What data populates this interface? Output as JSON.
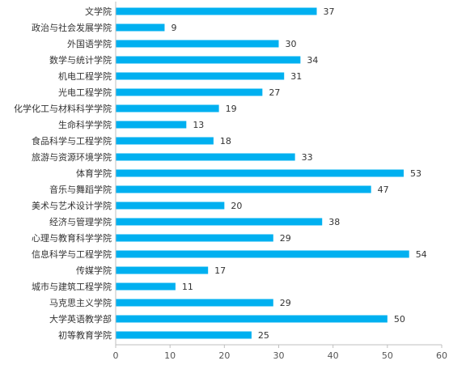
{
  "chart_data": {
    "type": "bar",
    "orientation": "horizontal",
    "categories": [
      "文学院",
      "政治与社会发展学院",
      "外国语学院",
      "数学与统计学院",
      "机电工程学院",
      "光电工程学院",
      "化学化工与材料科学学院",
      "生命科学学院",
      "食品科学与工程学院",
      "旅游与资源环境学院",
      "体育学院",
      "音乐与舞蹈学院",
      "美术与艺术设计学院",
      "经济与管理学院",
      "心理与教育科学学院",
      "信息科学与工程学院",
      "传媒学院",
      "城市与建筑工程学院",
      "马克思主义学院",
      "大学英语教学部",
      "初等教育学院"
    ],
    "values": [
      37,
      9,
      30,
      34,
      31,
      27,
      19,
      13,
      18,
      33,
      53,
      47,
      20,
      38,
      29,
      54,
      17,
      11,
      29,
      50,
      25
    ],
    "xlim": [
      0,
      60
    ],
    "xticks": [
      0,
      10,
      20,
      30,
      40,
      50,
      60
    ],
    "bar_color": "#00b0f0",
    "grid": false,
    "data_labels": true,
    "legend": "none",
    "title": "",
    "xlabel": "",
    "ylabel": ""
  }
}
